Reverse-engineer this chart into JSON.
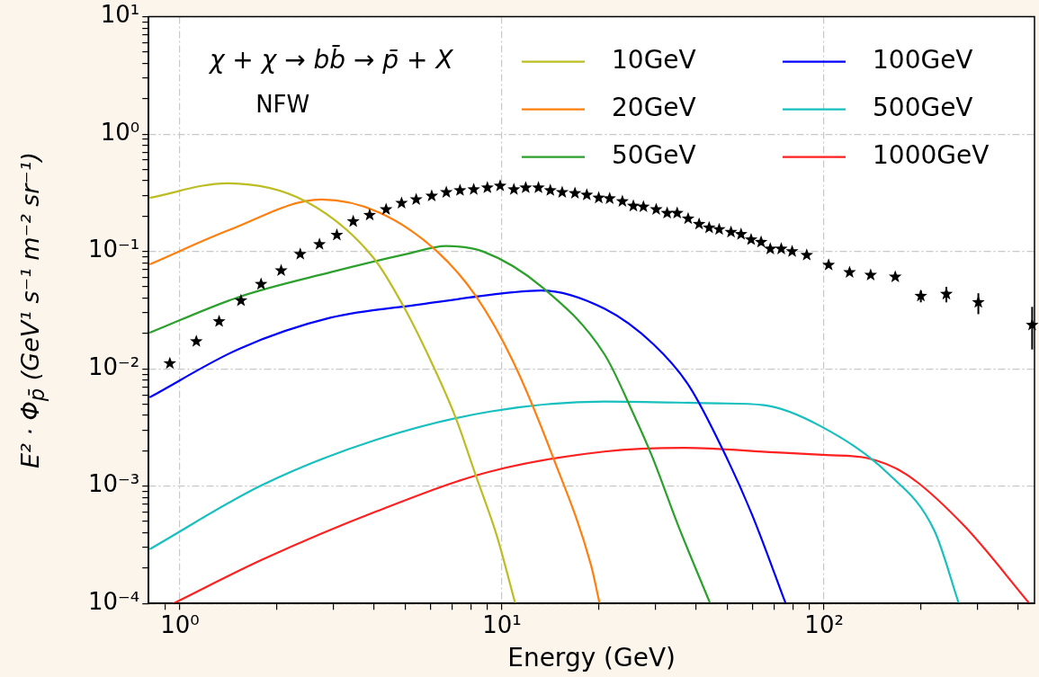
{
  "chart_data": {
    "type": "line",
    "xlabel": "Energy (GeV)",
    "ylabel": "E² · Φ$_{p̄}$ (GeV¹ s⁻¹ m⁻² sr⁻¹)",
    "annotations": [
      "χ + χ → bb̄ → p̄ + X",
      "NFW"
    ],
    "log": "xy",
    "grid": true,
    "legend": "top right",
    "marker": "none",
    "line_style": "solid",
    "xlim": [
      0.8,
      450
    ],
    "ylim": [
      0.0001,
      10
    ],
    "xticks": [
      {
        "value": 0.9,
        "label": null
      },
      {
        "value": 1,
        "label": "10⁰"
      },
      {
        "value": 2,
        "label": null
      },
      {
        "value": 3,
        "label": null
      },
      {
        "value": 4,
        "label": null
      },
      {
        "value": 5,
        "label": null
      },
      {
        "value": 6,
        "label": null
      },
      {
        "value": 7,
        "label": null
      },
      {
        "value": 8,
        "label": null
      },
      {
        "value": 9,
        "label": null
      },
      {
        "value": 10,
        "label": "10¹"
      },
      {
        "value": 20,
        "label": null
      },
      {
        "value": 30,
        "label": null
      },
      {
        "value": 40,
        "label": null
      },
      {
        "value": 50,
        "label": null
      },
      {
        "value": 60,
        "label": null
      },
      {
        "value": 70,
        "label": null
      },
      {
        "value": 80,
        "label": null
      },
      {
        "value": 90,
        "label": null
      },
      {
        "value": 100,
        "label": "10²"
      },
      {
        "value": 200,
        "label": null
      },
      {
        "value": 300,
        "label": null
      },
      {
        "value": 400,
        "label": null
      }
    ],
    "yticks": [
      {
        "value": 0.0001,
        "label": "10⁻⁴"
      },
      {
        "value": 0.0002,
        "label": null
      },
      {
        "value": 0.0003,
        "label": null
      },
      {
        "value": 0.0004,
        "label": null
      },
      {
        "value": 0.0005,
        "label": null
      },
      {
        "value": 0.0006,
        "label": null
      },
      {
        "value": 0.0007,
        "label": null
      },
      {
        "value": 0.0008,
        "label": null
      },
      {
        "value": 0.0009,
        "label": null
      },
      {
        "value": 0.001,
        "label": "10⁻³"
      },
      {
        "value": 0.002,
        "label": null
      },
      {
        "value": 0.003,
        "label": null
      },
      {
        "value": 0.004,
        "label": null
      },
      {
        "value": 0.005,
        "label": null
      },
      {
        "value": 0.006,
        "label": null
      },
      {
        "value": 0.007,
        "label": null
      },
      {
        "value": 0.008,
        "label": null
      },
      {
        "value": 0.009,
        "label": null
      },
      {
        "value": 0.01,
        "label": "10⁻²"
      },
      {
        "value": 0.02,
        "label": null
      },
      {
        "value": 0.03,
        "label": null
      },
      {
        "value": 0.04,
        "label": null
      },
      {
        "value": 0.05,
        "label": null
      },
      {
        "value": 0.06,
        "label": null
      },
      {
        "value": 0.07,
        "label": null
      },
      {
        "value": 0.08,
        "label": null
      },
      {
        "value": 0.09,
        "label": null
      },
      {
        "value": 0.1,
        "label": "10⁻¹"
      },
      {
        "value": 0.2,
        "label": null
      },
      {
        "value": 0.3,
        "label": null
      },
      {
        "value": 0.4,
        "label": null
      },
      {
        "value": 0.5,
        "label": null
      },
      {
        "value": 0.6,
        "label": null
      },
      {
        "value": 0.7,
        "label": null
      },
      {
        "value": 0.8,
        "label": null
      },
      {
        "value": 0.9,
        "label": null
      },
      {
        "value": 1,
        "label": "10⁰"
      },
      {
        "value": 2,
        "label": null
      },
      {
        "value": 3,
        "label": null
      },
      {
        "value": 4,
        "label": null
      },
      {
        "value": 5,
        "label": null
      },
      {
        "value": 6,
        "label": null
      },
      {
        "value": 7,
        "label": null
      },
      {
        "value": 8,
        "label": null
      },
      {
        "value": 9,
        "label": null
      },
      {
        "value": 10,
        "label": "10¹"
      }
    ],
    "series": [
      {
        "name": "10GeV",
        "color": "#bcbd22",
        "x": [
          0.81,
          1.4,
          2.46,
          3.99,
          4.94,
          6.01,
          7.17,
          8.27,
          9.61,
          11.0
        ],
        "values": [
          0.287,
          0.381,
          0.267,
          0.0883,
          0.0343,
          0.0117,
          0.00388,
          0.00126,
          0.000388,
          0.0001
        ]
      },
      {
        "name": "20GeV",
        "color": "#ff7f0e",
        "x": [
          0.81,
          1.43,
          2.75,
          4.15,
          6.29,
          8.33,
          10.8,
          14.4,
          18.9,
          20.1
        ],
        "values": [
          0.0779,
          0.153,
          0.277,
          0.215,
          0.1,
          0.041,
          0.0117,
          0.00177,
          0.000212,
          0.0001
        ]
      },
      {
        "name": "50GeV",
        "color": "#2ca02c",
        "x": [
          0.81,
          1.53,
          2.93,
          5.04,
          6.72,
          8.72,
          13.4,
          20.8,
          25.4,
          29.3,
          35.2,
          44.3
        ],
        "values": [
          0.0204,
          0.041,
          0.0663,
          0.0948,
          0.111,
          0.1,
          0.049,
          0.0133,
          0.00432,
          0.00177,
          0.000465,
          0.0001
        ]
      },
      {
        "name": "100GeV",
        "color": "#0000ff",
        "x": [
          0.81,
          1.53,
          2.93,
          5.63,
          10.8,
          13.2,
          20.8,
          29.5,
          38.1,
          48.8,
          59.7,
          76.0
        ],
        "values": [
          0.00575,
          0.0148,
          0.0272,
          0.0355,
          0.0448,
          0.0465,
          0.0325,
          0.0162,
          0.00713,
          0.00197,
          0.000575,
          0.0001
        ]
      },
      {
        "name": "500GeV",
        "color": "#17bfbf",
        "x": [
          0.81,
          1.8,
          4.06,
          9.19,
          20.8,
          46.9,
          65.0,
          97.4,
          159,
          220,
          262
        ],
        "values": [
          0.000292,
          0.00102,
          0.00248,
          0.00432,
          0.00526,
          0.00507,
          0.0049,
          0.00325,
          0.00126,
          0.000417,
          0.0001
        ]
      },
      {
        "name": "1000GeV",
        "color": "#ff2020",
        "x": [
          0.955,
          1.8,
          4.06,
          9.19,
          20.8,
          36.6,
          70.3,
          102,
          135,
          180,
          271,
          434
        ],
        "values": [
          0.0001,
          0.000236,
          0.000607,
          0.00133,
          0.00197,
          0.00212,
          0.00194,
          0.00184,
          0.00174,
          0.00126,
          0.000465,
          0.0001
        ]
      },
      {
        "type": "scatter",
        "color": "#000000",
        "marker": "star",
        "x": [
          0.931,
          1.125,
          1.324,
          1.548,
          1.787,
          2.063,
          2.365,
          2.713,
          3.072,
          3.453,
          3.884,
          4.368,
          4.879,
          5.416,
          6.052,
          6.718,
          7.409,
          8.172,
          9.01,
          9.87,
          10.89,
          11.85,
          12.98,
          14.13,
          15.38,
          16.85,
          18.34,
          19.97,
          21.59,
          23.65,
          25.58,
          27.49,
          30.12,
          32.57,
          34.99,
          37.84,
          40.93,
          43.97,
          47.24,
          51.41,
          55.24,
          59.35,
          63.75,
          68.07,
          73.62,
          79.58,
          88.34,
          103.3,
          120.0,
          139.5,
          166.3,
          199.7,
          239.7,
          301.2,
          442.5
        ],
        "values": [
          0.0111,
          0.0171,
          0.0253,
          0.0381,
          0.0526,
          0.0687,
          0.0948,
          0.115,
          0.138,
          0.18,
          0.204,
          0.228,
          0.258,
          0.277,
          0.297,
          0.319,
          0.331,
          0.337,
          0.349,
          0.362,
          0.337,
          0.349,
          0.349,
          0.331,
          0.319,
          0.313,
          0.303,
          0.286,
          0.282,
          0.267,
          0.244,
          0.24,
          0.228,
          0.212,
          0.212,
          0.19,
          0.171,
          0.159,
          0.154,
          0.146,
          0.14,
          0.126,
          0.12,
          0.105,
          0.105,
          0.1,
          0.0931,
          0.0766,
          0.0663,
          0.0629,
          0.0607,
          0.0417,
          0.0433,
          0.0368,
          0.0236
        ],
        "errors": [
          null,
          null,
          null,
          null,
          null,
          null,
          null,
          null,
          null,
          null,
          null,
          null,
          null,
          null,
          null,
          null,
          null,
          null,
          null,
          null,
          null,
          null,
          null,
          null,
          null,
          null,
          null,
          null,
          null,
          null,
          null,
          null,
          null,
          null,
          null,
          null,
          null,
          null,
          null,
          null,
          null,
          null,
          null,
          null,
          null,
          null,
          null,
          null,
          null,
          null,
          null,
          [
            0.0368,
            0.0465
          ],
          [
            0.0368,
            0.0499
          ],
          [
            0.0292,
            0.044
          ],
          [
            0.0146,
            0.0337
          ]
        ]
      }
    ]
  }
}
